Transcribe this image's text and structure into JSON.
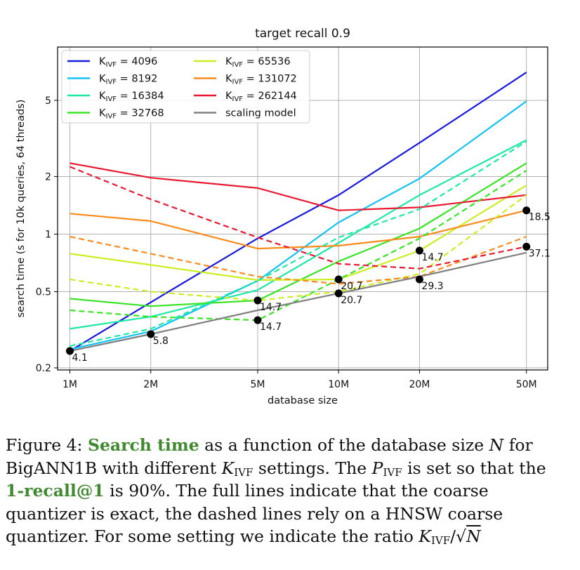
{
  "chart_data": {
    "type": "line",
    "title": "target recall 0.9",
    "xlabel": "database size",
    "ylabel": "search time (s for 10k queries, 64 threads)",
    "xscale": "log",
    "yscale": "log",
    "xlim": [
      0.9,
      60
    ],
    "ylim": [
      0.195,
      9.5
    ],
    "grid": true,
    "legend_position": "top-left",
    "x": [
      1,
      2,
      5,
      10,
      20,
      50
    ],
    "x_tick_labels": [
      "1M",
      "2M",
      "5M",
      "10M",
      "20M",
      "50M"
    ],
    "y_ticks": [
      0.2,
      0.5,
      1,
      2,
      5
    ],
    "y_tick_labels": [
      "0.2",
      "0.5",
      "1",
      "2",
      "5"
    ],
    "series": [
      {
        "name": "K_IVF = 4096",
        "k": "4096",
        "color": "#1a1adc",
        "style": "solid",
        "values": [
          0.245,
          0.44,
          0.95,
          1.6,
          3.0,
          7.0
        ]
      },
      {
        "name": "K_IVF = 8192",
        "k": "8192",
        "color": "#14c2f2",
        "style": "solid",
        "values": [
          0.25,
          0.31,
          0.57,
          1.15,
          1.95,
          4.95
        ]
      },
      {
        "name": "K_IVF = 16384",
        "k": "16384",
        "color": "#1de8a4",
        "style": "solid",
        "values": [
          0.32,
          0.37,
          0.51,
          0.9,
          1.6,
          3.1
        ]
      },
      {
        "name": "K_IVF = 32768",
        "k": "32768",
        "color": "#3ae326",
        "style": "solid",
        "values": [
          0.46,
          0.42,
          0.45,
          0.72,
          1.07,
          2.35
        ]
      },
      {
        "name": "K_IVF = 65536",
        "k": "65536",
        "color": "#c9ef23",
        "style": "solid",
        "values": [
          0.79,
          0.69,
          0.575,
          0.58,
          0.82,
          1.8
        ]
      },
      {
        "name": "K_IVF = 131072",
        "k": "131072",
        "color": "#fb8a1a",
        "style": "solid",
        "values": [
          1.28,
          1.17,
          0.84,
          0.87,
          0.97,
          1.33
        ]
      },
      {
        "name": "K_IVF = 262144",
        "k": "262144",
        "color": "#e81930",
        "style": "solid",
        "values": [
          2.35,
          1.97,
          1.74,
          1.33,
          1.38,
          1.6
        ]
      },
      {
        "name": "K_IVF = 8192 (HNSW)",
        "color": "#14c2f2",
        "style": "dashed",
        "values": [
          0.245,
          0.3,
          null,
          null,
          null,
          null
        ]
      },
      {
        "name": "K_IVF = 16384 (HNSW)",
        "color": "#1de8a4",
        "style": "dashed",
        "values": [
          0.26,
          0.32,
          0.57,
          0.96,
          1.35,
          3.05
        ]
      },
      {
        "name": "K_IVF = 32768 (HNSW)",
        "color": "#3ae326",
        "style": "dashed",
        "values": [
          0.4,
          0.37,
          0.355,
          0.58,
          0.95,
          2.15
        ]
      },
      {
        "name": "K_IVF = 65536 (HNSW)",
        "color": "#c9ef23",
        "style": "dashed",
        "values": [
          0.58,
          0.5,
          0.45,
          0.5,
          0.62,
          1.6
        ]
      },
      {
        "name": "K_IVF = 131072 (HNSW)",
        "color": "#fb8a1a",
        "style": "dashed",
        "values": [
          0.97,
          0.79,
          0.6,
          0.55,
          0.6,
          0.97
        ]
      },
      {
        "name": "K_IVF = 262144 (HNSW)",
        "color": "#e81930",
        "style": "dashed",
        "values": [
          2.25,
          1.52,
          0.96,
          0.7,
          0.66,
          0.86
        ]
      },
      {
        "name": "scaling model",
        "color": "#808080",
        "style": "solid",
        "values": [
          0.245,
          0.3,
          0.4,
          0.49,
          0.6,
          0.8
        ]
      }
    ],
    "markers": [
      {
        "x": 1,
        "y": 0.245,
        "label": "4.1"
      },
      {
        "x": 2,
        "y": 0.3,
        "label": "5.8"
      },
      {
        "x": 5,
        "y": 0.45,
        "label": "14.7"
      },
      {
        "x": 5,
        "y": 0.355,
        "label": "14.7"
      },
      {
        "x": 10,
        "y": 0.58,
        "label": "20.7"
      },
      {
        "x": 10,
        "y": 0.49,
        "label": "20.7"
      },
      {
        "x": 20,
        "y": 0.82,
        "label": "14.7"
      },
      {
        "x": 20,
        "y": 0.58,
        "label": "29.3"
      },
      {
        "x": 50,
        "y": 1.33,
        "label": "18.5"
      },
      {
        "x": 50,
        "y": 0.86,
        "label": "37.1"
      }
    ]
  },
  "caption": {
    "figure_label": "Figure 4:",
    "highlight_1": "Search time",
    "text_1": "as a function of the database size",
    "var_n": "N",
    "text_2": "for BigANN1B with different",
    "var_k": "K",
    "sub_ivf": "IVF",
    "text_3": "settings. The",
    "var_p": "P",
    "text_4": "is set so that the",
    "highlight_2": "1-recall@1",
    "text_5": "is 90%. The full lines indicate that the coarse quantizer is exact, the dashed lines rely on a HNSW coarse quantizer. For some setting we indicate the ratio",
    "ratio_sep": "/√",
    "period": "."
  }
}
